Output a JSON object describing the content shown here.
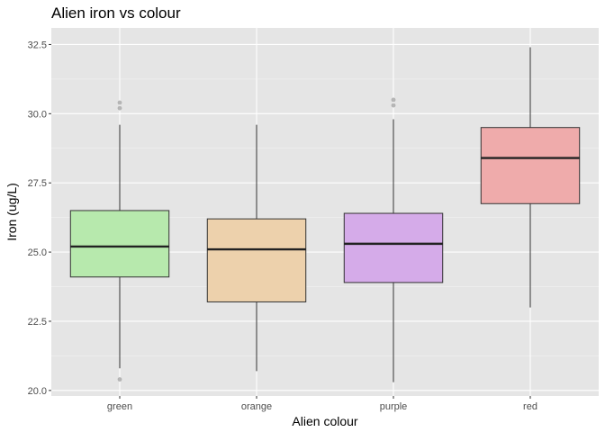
{
  "chart_data": {
    "type": "box",
    "title": "Alien iron vs colour",
    "xlabel": "Alien colour",
    "ylabel": "Iron (ug/L)",
    "ylim": [
      19.8,
      33.1
    ],
    "yticks": [
      20.0,
      22.5,
      25.0,
      27.5,
      30.0,
      32.5
    ],
    "ytick_labels": [
      "20.0",
      "22.5",
      "25.0",
      "27.5",
      "30.0",
      "32.5"
    ],
    "grid": true,
    "colors": {
      "panel": "#e5e5e5",
      "grid_major": "#ffffff",
      "grid_minor": "#f2f2f2",
      "box_outline": "#333333",
      "outlier": "#a6a6a6"
    },
    "categories": [
      "green",
      "orange",
      "purple",
      "red"
    ],
    "boxes": [
      {
        "category": "green",
        "fill": "#b7e9ad",
        "min": 20.8,
        "q1": 24.1,
        "median": 25.2,
        "q3": 26.5,
        "max": 29.6,
        "outliers": [
          30.4,
          30.2,
          20.4
        ]
      },
      {
        "category": "orange",
        "fill": "#edd1ac",
        "min": 20.7,
        "q1": 23.2,
        "median": 25.1,
        "q3": 26.2,
        "max": 29.6,
        "outliers": []
      },
      {
        "category": "purple",
        "fill": "#d5abe9",
        "min": 20.3,
        "q1": 23.9,
        "median": 25.3,
        "q3": 26.4,
        "max": 29.8,
        "outliers": [
          30.5,
          30.3
        ]
      },
      {
        "category": "red",
        "fill": "#efabab",
        "min": 23.0,
        "q1": 26.75,
        "median": 28.4,
        "q3": 29.5,
        "max": 32.4,
        "outliers": []
      }
    ]
  }
}
